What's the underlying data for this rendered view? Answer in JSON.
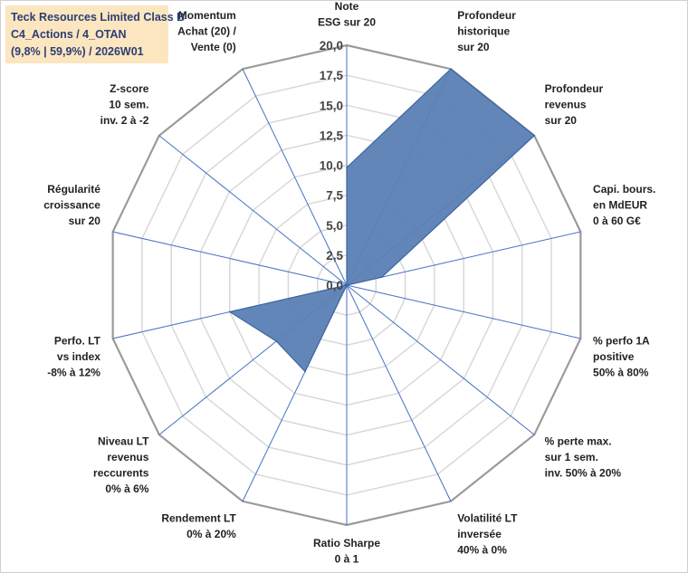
{
  "title": {
    "line1": "Teck Resources Limited Class B",
    "line2": "C4_Actions / 4_OTAN",
    "line3": "(9,8% | 59,9%) / 2026W01"
  },
  "chart_data": {
    "type": "radar",
    "rmin": 0,
    "rmax": 20,
    "ticks": [
      "0,0",
      "2,5",
      "5,0",
      "7,5",
      "10,0",
      "12,5",
      "15,0",
      "17,5",
      "20,0"
    ],
    "tick_values": [
      0,
      2.5,
      5,
      7.5,
      10,
      12.5,
      15,
      17.5,
      20
    ],
    "categories": [
      [
        "Note",
        "ESG sur 20"
      ],
      [
        "Profondeur",
        "historique",
        "sur 20"
      ],
      [
        "Profondeur",
        "revenus",
        "sur 20"
      ],
      [
        "Capi. bours.",
        "en MdEUR",
        "0 à 60 G€"
      ],
      [
        "% perfo 1A",
        "positive",
        "50% à 80%"
      ],
      [
        "% perte max.",
        "sur 1 sem.",
        "inv. 50% à 20%"
      ],
      [
        "Volatilité LT",
        "inversée",
        "40% à 0%"
      ],
      [
        "Ratio Sharpe",
        "0 à 1"
      ],
      [
        "Rendement LT",
        "0% à 20%"
      ],
      [
        "Niveau LT",
        "revenus",
        "reccurents",
        "0% à 6%"
      ],
      [
        "Perfo. LT",
        "vs index",
        "-8% à 12%"
      ],
      [
        "Régularité",
        "croissance",
        "sur 20"
      ],
      [
        "Z-score",
        "10 sem.",
        "inv. 2 à -2"
      ],
      [
        "Momentum",
        "Achat (20) /",
        "Vente (0)"
      ]
    ],
    "series": [
      {
        "values": [
          9.8,
          20,
          20,
          3.0,
          0,
          0,
          0,
          0,
          8.0,
          7.5,
          10.0,
          0,
          0,
          0
        ]
      }
    ],
    "colors": {
      "fill": "#5b7fb5",
      "stroke": "#3e64a0",
      "grid": "#d6d6d6",
      "outer": "#9a9a9a",
      "spoke": "#4472c4"
    }
  }
}
